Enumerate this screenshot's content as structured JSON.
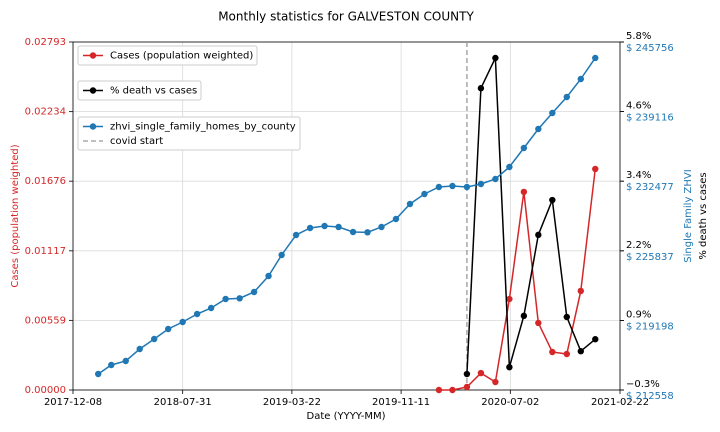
{
  "chart_data": {
    "type": "line",
    "title": "Monthly statistics for GALVESTON COUNTY",
    "xlabel": "Date (YYYY-MM)",
    "ylabel": "Cases (population weighted)",
    "y2label": "% death vs cases",
    "y3label": "Single Family ZHVI",
    "grid": true,
    "x": [
      "2018-01-31",
      "2018-02-28",
      "2018-03-31",
      "2018-04-30",
      "2018-05-31",
      "2018-06-30",
      "2018-07-31",
      "2018-08-31",
      "2018-09-30",
      "2018-10-31",
      "2018-11-30",
      "2018-12-31",
      "2019-01-31",
      "2019-02-28",
      "2019-03-31",
      "2019-04-30",
      "2019-05-31",
      "2019-06-30",
      "2019-07-31",
      "2019-08-31",
      "2019-09-30",
      "2019-10-31",
      "2019-11-30",
      "2019-12-31",
      "2020-01-31",
      "2020-02-29",
      "2020-03-31",
      "2020-04-30",
      "2020-05-31",
      "2020-06-30",
      "2020-07-31",
      "2020-08-31",
      "2020-09-30",
      "2020-10-31",
      "2020-11-30",
      "2020-12-31"
    ],
    "xlim": [
      "2017-12-08",
      "2021-02-22"
    ],
    "xticks": [
      "2017-12-08",
      "2018-07-31",
      "2019-03-22",
      "2019-11-11",
      "2020-07-02",
      "2021-02-22"
    ],
    "ylim": [
      0,
      0.02793
    ],
    "yticks": [
      {
        "value": 0,
        "label": "0.00000"
      },
      0.00559,
      0.01117,
      0.01676,
      0.02234,
      0.02793
    ],
    "y2lim": [
      -0.3,
      5.8
    ],
    "y2ticks": [
      {
        "value": -0.3,
        "label": "−0.3%"
      },
      {
        "value": 0.92,
        "label": "0.9%"
      },
      {
        "value": 2.14,
        "label": "2.2%"
      },
      {
        "value": 3.36,
        "label": "3.4%"
      },
      {
        "value": 4.58,
        "label": "4.6%"
      },
      {
        "value": 5.8,
        "label": "5.8%"
      }
    ],
    "y3lim": [
      212558,
      245756
    ],
    "y3ticks": [
      {
        "value": 212558,
        "label": "$ 212558"
      },
      {
        "value": 219198,
        "label": "$ 219198"
      },
      {
        "value": 225837,
        "label": "$ 225837"
      },
      {
        "value": 232477,
        "label": "$ 232477"
      },
      {
        "value": 239116,
        "label": "$ 239116"
      },
      {
        "value": 245756,
        "label": "$ 245756"
      }
    ],
    "series": [
      {
        "name": "Cases (population weighted)",
        "color": "#d62728",
        "axis": "y",
        "values": [
          null,
          null,
          null,
          null,
          null,
          null,
          null,
          null,
          null,
          null,
          null,
          null,
          null,
          null,
          null,
          null,
          null,
          null,
          null,
          null,
          null,
          null,
          null,
          null,
          0,
          0,
          0.00024,
          0.00136,
          0.00064,
          0.0073,
          0.0159,
          0.00538,
          0.00305,
          0.00289,
          0.00795,
          0.01774
        ]
      },
      {
        "name": "% death vs cases",
        "color": "#000000",
        "axis": "y2",
        "values": [
          null,
          null,
          null,
          null,
          null,
          null,
          null,
          null,
          null,
          null,
          null,
          null,
          null,
          null,
          null,
          null,
          null,
          null,
          null,
          null,
          null,
          null,
          null,
          null,
          null,
          null,
          -0.02,
          4.99,
          5.52,
          0.1,
          1.0,
          2.42,
          3.03,
          0.98,
          0.38,
          0.59
        ]
      },
      {
        "name": "zhvi_single_family_homes_by_county",
        "color": "#1f77b4",
        "axis": "y3",
        "values": [
          214084,
          214943,
          215325,
          216469,
          217423,
          218377,
          219045,
          219808,
          220381,
          221239,
          221300,
          221907,
          223434,
          225437,
          227345,
          228013,
          228204,
          228108,
          227631,
          227600,
          228108,
          228871,
          230302,
          231256,
          231924,
          232020,
          231924,
          232210,
          232687,
          233832,
          235645,
          237457,
          238984,
          240510,
          242227,
          244231
        ]
      }
    ],
    "vline": {
      "name": "covid start",
      "x": "2020-03-31",
      "color": "#999999"
    }
  }
}
